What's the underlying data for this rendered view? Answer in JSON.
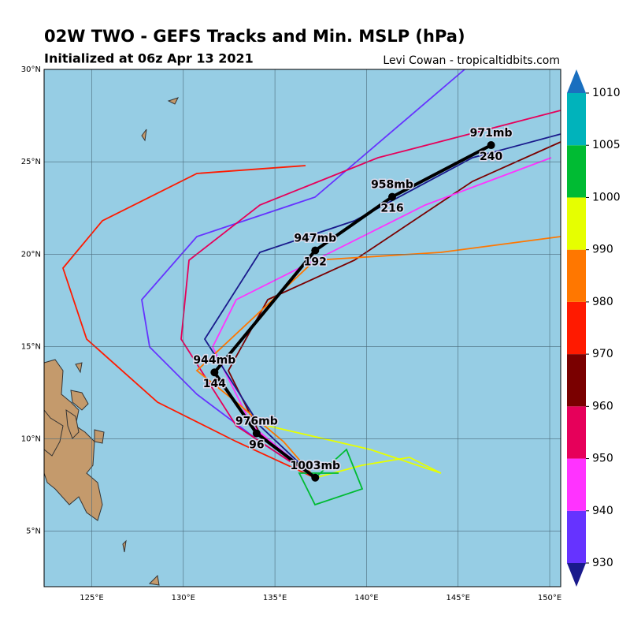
{
  "header": {
    "title": "02W TWO - GEFS Tracks and Min. MSLP (hPa)",
    "subtitle": "Initialized at 06z Apr 13 2021",
    "credit": "Levi Cowan - tropicaltidbits.com"
  },
  "map": {
    "xlim": [
      122.4,
      150.6
    ],
    "ylim": [
      2,
      30
    ],
    "xticks": [
      {
        "value": 125,
        "label": "125°E"
      },
      {
        "value": 130,
        "label": "130°E"
      },
      {
        "value": 135,
        "label": "135°E"
      },
      {
        "value": 140,
        "label": "140°E"
      },
      {
        "value": 145,
        "label": "145°E"
      },
      {
        "value": 150,
        "label": "150°E"
      }
    ],
    "yticks": [
      {
        "value": 5,
        "label": "5°N"
      },
      {
        "value": 10,
        "label": "10°N"
      },
      {
        "value": 15,
        "label": "15°N"
      },
      {
        "value": 20,
        "label": "20°N"
      },
      {
        "value": 25,
        "label": "25°N"
      },
      {
        "value": 30,
        "label": "30°N"
      }
    ],
    "grid": true,
    "ocean_color": "#96cde4",
    "land_color": "#c49a6c",
    "mean_track": {
      "color": "#000000",
      "points": [
        {
          "lon": 137.2,
          "lat": 7.9,
          "pressure": {
            "value": 1003,
            "label": "1003mb"
          }
        },
        {
          "lon": 134.0,
          "lat": 10.3,
          "pressure": {
            "value": 976,
            "label": "976mb"
          },
          "hour": 96
        },
        {
          "lon": 131.7,
          "lat": 13.6,
          "pressure": {
            "value": 944,
            "label": "944mb"
          },
          "hour": 144
        },
        {
          "lon": 137.2,
          "lat": 20.2,
          "pressure": {
            "value": 947,
            "label": "947mb"
          },
          "hour": 192
        },
        {
          "lon": 141.4,
          "lat": 23.1,
          "pressure": {
            "value": 958,
            "label": "958mb"
          },
          "hour": 216
        },
        {
          "lon": 146.8,
          "lat": 25.9,
          "pressure": {
            "value": 971,
            "label": "971mb"
          },
          "hour": 240
        }
      ]
    }
  },
  "colorbar": {
    "levels": [
      930,
      940,
      950,
      960,
      970,
      980,
      990,
      1000,
      1005,
      1010
    ],
    "colors": [
      "#6633ff",
      "#ff33ff",
      "#e6005a",
      "#7a0000",
      "#ff1a00",
      "#ff7700",
      "#e6ff00",
      "#00bb33",
      "#00b3bb"
    ],
    "under_color": "#1a1a8c",
    "over_color": "#1a6fbf"
  }
}
